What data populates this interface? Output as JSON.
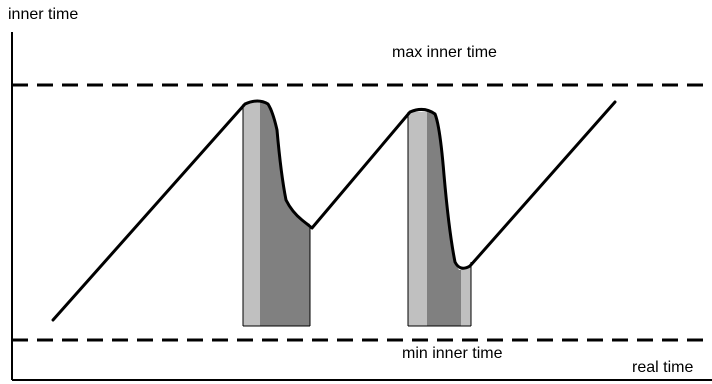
{
  "labels": {
    "y_axis": "inner time",
    "x_axis": "real time",
    "max_line": "max inner time",
    "min_line": "min inner time"
  },
  "colors": {
    "line": "#000000",
    "light_band": "#c0c0c0",
    "dark_band": "#808080",
    "background": "#ffffff"
  }
}
